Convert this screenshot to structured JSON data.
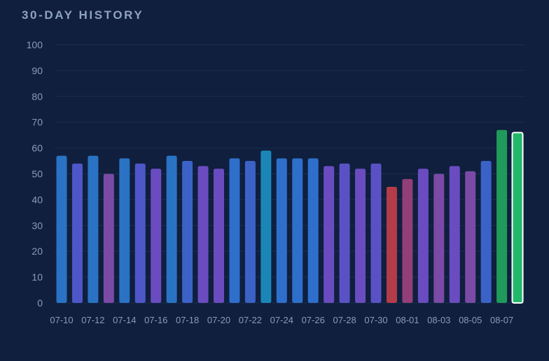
{
  "chart_data": {
    "type": "bar",
    "title": "30-DAY HISTORY",
    "xlabel": "",
    "ylabel": "",
    "ylim": [
      0,
      100
    ],
    "yticks": [
      0,
      10,
      20,
      30,
      40,
      50,
      60,
      70,
      80,
      90,
      100
    ],
    "grid": true,
    "legend": "none",
    "categories": [
      "07-10",
      "07-11",
      "07-12",
      "07-13",
      "07-14",
      "07-15",
      "07-16",
      "07-17",
      "07-18",
      "07-19",
      "07-20",
      "07-21",
      "07-22",
      "07-23",
      "07-24",
      "07-25",
      "07-26",
      "07-27",
      "07-28",
      "07-29",
      "07-30",
      "07-31",
      "08-01",
      "08-02",
      "08-03",
      "08-04",
      "08-05",
      "08-06",
      "08-07",
      "08-08"
    ],
    "xtick_labels": [
      "07-10",
      "07-12",
      "07-14",
      "07-16",
      "07-18",
      "07-20",
      "07-22",
      "07-24",
      "07-26",
      "07-28",
      "07-30",
      "08-01",
      "08-03",
      "08-05",
      "08-07"
    ],
    "values": [
      57,
      54,
      57,
      50,
      56,
      54,
      52,
      57,
      55,
      53,
      52,
      56,
      55,
      59,
      56,
      56,
      56,
      53,
      54,
      52,
      54,
      45,
      48,
      52,
      50,
      53,
      51,
      55,
      67,
      66
    ],
    "bar_colors": [
      "#2a72c4",
      "#4f56c8",
      "#2a72c4",
      "#7a4aa6",
      "#2a72c4",
      "#4f56c8",
      "#6a4cc0",
      "#2a72c4",
      "#3b62c6",
      "#6a4cc0",
      "#6a4cc0",
      "#2f6fcc",
      "#3b62c6",
      "#1a86b8",
      "#2f6fcc",
      "#2f6fcc",
      "#2f6fcc",
      "#6a4cc0",
      "#5a52c4",
      "#6a4cc0",
      "#5a52c4",
      "#b33c48",
      "#923e78",
      "#6a4cc0",
      "#7a4aa6",
      "#6a4cc0",
      "#7a4aa6",
      "#3b62c6",
      "#1f9a5a",
      "#22b86a"
    ],
    "highlight_index": 29
  },
  "colors": {
    "background": "#0f1f3d",
    "gridline": "#1b2d4f",
    "highlight_outline": "#ffffff"
  }
}
